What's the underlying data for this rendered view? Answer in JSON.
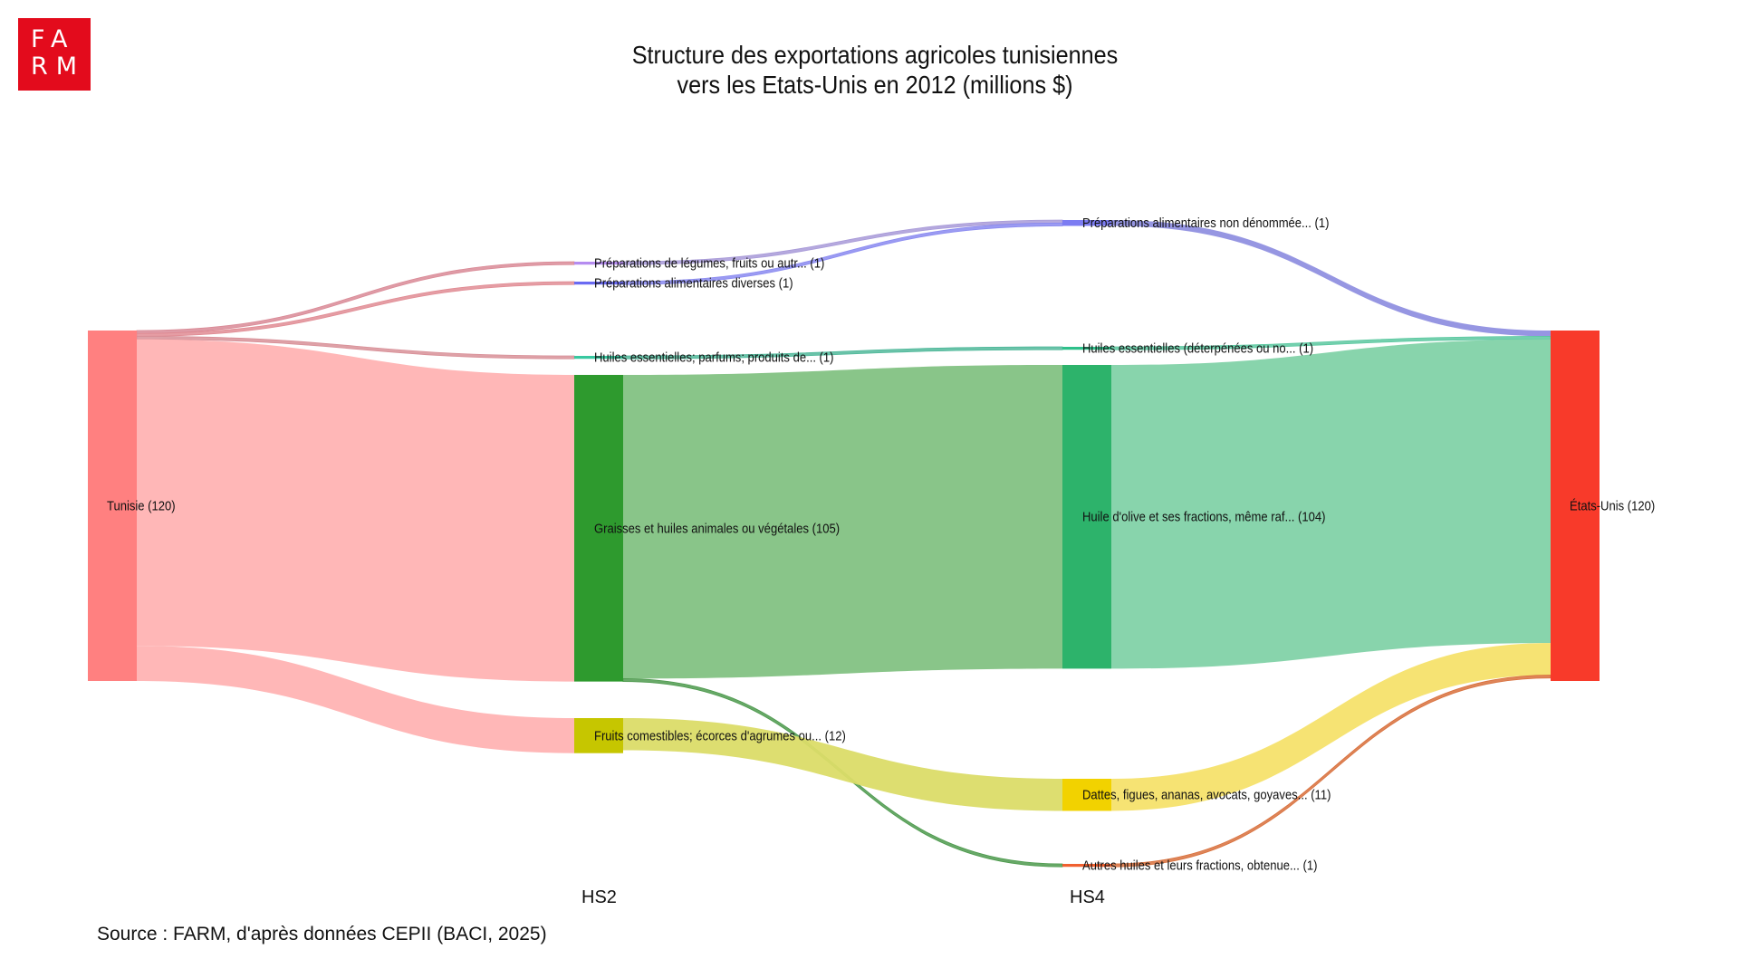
{
  "logo": {
    "line1": "FA",
    "line2": "RM",
    "color": "#e30b1c"
  },
  "source_note": "Source : FARM, d'après données CEPII (BACI, 2025)",
  "chart_data": {
    "type": "sankey",
    "title": [
      "Structure des exportations agricoles tunisiennes",
      "vers les Etats-Unis en 2012 (millions $)"
    ],
    "unit": "millions $",
    "columns": [
      {
        "id": "origin",
        "label": ""
      },
      {
        "id": "hs2",
        "label": "HS2"
      },
      {
        "id": "hs4",
        "label": "HS4"
      },
      {
        "id": "dest",
        "label": ""
      }
    ],
    "nodes": [
      {
        "id": "tunisie",
        "column": "origin",
        "label": "Tunisie (120)",
        "value": 120,
        "color": "#ff8080"
      },
      {
        "id": "prep_leg",
        "column": "hs2",
        "label": "Préparations de légumes, fruits ou autr... (1)",
        "value": 1,
        "color": "#b58cf0"
      },
      {
        "id": "prep_div",
        "column": "hs2",
        "label": "Préparations alimentaires diverses (1)",
        "value": 1,
        "color": "#6a6af2"
      },
      {
        "id": "huiles2",
        "column": "hs2",
        "label": "Huiles essentielles; parfums; produits de... (1)",
        "value": 1,
        "color": "#38c8a0"
      },
      {
        "id": "graisses",
        "column": "hs2",
        "label": "Graisses et huiles animales ou végétales (105)",
        "value": 105,
        "color": "#2e9a2e"
      },
      {
        "id": "fruits",
        "column": "hs2",
        "label": "Fruits comestibles; écorces d'agrumes ou... (12)",
        "value": 12,
        "color": "#c6c600"
      },
      {
        "id": "prep_nd",
        "column": "hs4",
        "label": "Préparations alimentaires non dénommée... (1)",
        "value": 1,
        "color": "#7c7cf2"
      },
      {
        "id": "huiles4",
        "column": "hs4",
        "label": "Huiles essentielles (déterpénées ou no... (1)",
        "value": 1,
        "color": "#2ec08a"
      },
      {
        "id": "olive",
        "column": "hs4",
        "label": "Huile d'olive et ses fractions, même raf... (104)",
        "value": 104,
        "color": "#2db36b"
      },
      {
        "id": "dattes",
        "column": "hs4",
        "label": "Dattes, figues, ananas, avocats, goyaves... (11)",
        "value": 11,
        "color": "#f2d200"
      },
      {
        "id": "autres",
        "column": "hs4",
        "label": "Autres huiles et leurs fractions, obtenue... (1)",
        "value": 1,
        "color": "#f06030"
      },
      {
        "id": "us",
        "column": "dest",
        "label": "États-Unis (120)",
        "value": 120,
        "color": "#f83a2a"
      }
    ],
    "links": [
      {
        "source": "tunisie",
        "target": "prep_leg",
        "value": 1,
        "color": "#d98a96"
      },
      {
        "source": "tunisie",
        "target": "prep_div",
        "value": 1,
        "color": "#e08c94"
      },
      {
        "source": "tunisie",
        "target": "huiles2",
        "value": 1,
        "color": "#d89098"
      },
      {
        "source": "tunisie",
        "target": "graisses",
        "value": 105,
        "color": "#ffb3b3"
      },
      {
        "source": "tunisie",
        "target": "fruits",
        "value": 12,
        "color": "#ffb3b3"
      },
      {
        "source": "prep_leg",
        "target": "prep_nd",
        "value": 1,
        "color": "#a89ad8"
      },
      {
        "source": "prep_div",
        "target": "prep_nd",
        "value": 1,
        "color": "#8a8af0"
      },
      {
        "source": "huiles2",
        "target": "huiles4",
        "value": 1,
        "color": "#50b89a"
      },
      {
        "source": "graisses",
        "target": "olive",
        "value": 104,
        "color": "#83c283"
      },
      {
        "source": "graisses",
        "target": "autres",
        "value": 1,
        "color": "#4e9a4e"
      },
      {
        "source": "fruits",
        "target": "dattes",
        "value": 11,
        "color": "#dbdc68"
      },
      {
        "source": "prep_nd",
        "target": "us",
        "value": 2,
        "color": "#9090e0"
      },
      {
        "source": "huiles4",
        "target": "us",
        "value": 1,
        "color": "#5cc8a0"
      },
      {
        "source": "olive",
        "target": "us",
        "value": 104,
        "color": "#82d2a8"
      },
      {
        "source": "dattes",
        "target": "us",
        "value": 11,
        "color": "#f5e16c"
      },
      {
        "source": "autres",
        "target": "us",
        "value": 1,
        "color": "#d8703c"
      }
    ]
  }
}
